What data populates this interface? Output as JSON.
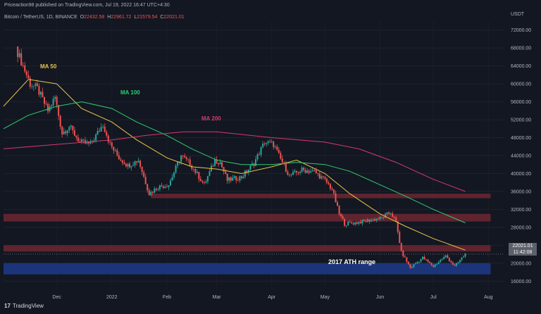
{
  "header": {
    "published": "Priceaction98 published on TradingView.com, Jul 19, 2022 16:47 UTC+4:30",
    "symbol": "Bitcoin / TetherUS, 1D, BINANCE",
    "o": "O",
    "o_val": "22432.58",
    "h": "H",
    "h_val": "22961.72",
    "l": "L",
    "l_val": "21579.54",
    "c": "C",
    "c_val": "22021.01",
    "unit": "USDT"
  },
  "footer": {
    "logo": "17",
    "brand": "TradingView"
  },
  "badge": {
    "price": "22021.01",
    "time": "11:42:08"
  },
  "annotations": {
    "ma50": "MA 50",
    "ma100": "MA 100",
    "ma200": "MA 200",
    "ath_range": "2017 ATH range"
  },
  "colors": {
    "background": "#131722",
    "up": "#26a69a",
    "down": "#ef5350",
    "ma50": "#e8c547",
    "ma100": "#2ecc71",
    "ma200": "#d63a6c",
    "resistance_zone": "#7a2a33",
    "ath_zone": "#1e3a8a"
  },
  "chart_data": {
    "type": "candlestick",
    "x_labels": [
      "Dec",
      "2022",
      "Feb",
      "Mar",
      "Apr",
      "May",
      "Jun",
      "Jul",
      "Aug"
    ],
    "y_ticks": [
      16000,
      20000,
      24000,
      28000,
      32000,
      36000,
      40000,
      44000,
      48000,
      52000,
      56000,
      60000,
      64000,
      68000,
      72000
    ],
    "ylim": [
      14000,
      74000
    ],
    "price_path": [
      [
        "2021-11-09",
        67000
      ],
      [
        "2021-11-12",
        64000
      ],
      [
        "2021-11-16",
        60000
      ],
      [
        "2021-11-20",
        59000
      ],
      [
        "2021-11-26",
        54000
      ],
      [
        "2021-11-30",
        57000
      ],
      [
        "2021-12-04",
        49000
      ],
      [
        "2021-12-08",
        50500
      ],
      [
        "2021-12-14",
        47000
      ],
      [
        "2021-12-20",
        46500
      ],
      [
        "2021-12-27",
        51000
      ],
      [
        "2021-12-31",
        46500
      ],
      [
        "2022-01-05",
        43500
      ],
      [
        "2022-01-10",
        41800
      ],
      [
        "2022-01-16",
        43000
      ],
      [
        "2022-01-22",
        35500
      ],
      [
        "2022-01-27",
        37000
      ],
      [
        "2022-02-02",
        37500
      ],
      [
        "2022-02-09",
        44000
      ],
      [
        "2022-02-14",
        42200
      ],
      [
        "2022-02-22",
        37500
      ],
      [
        "2022-02-28",
        43000
      ],
      [
        "2022-03-03",
        42500
      ],
      [
        "2022-03-07",
        38500
      ],
      [
        "2022-03-15",
        39200
      ],
      [
        "2022-03-22",
        42300
      ],
      [
        "2022-03-28",
        47000
      ],
      [
        "2022-04-02",
        46500
      ],
      [
        "2022-04-06",
        43200
      ],
      [
        "2022-04-11",
        39500
      ],
      [
        "2022-04-18",
        40800
      ],
      [
        "2022-04-25",
        40400
      ],
      [
        "2022-05-01",
        38500
      ],
      [
        "2022-05-05",
        36500
      ],
      [
        "2022-05-09",
        31000
      ],
      [
        "2022-05-12",
        28800
      ],
      [
        "2022-05-18",
        29000
      ],
      [
        "2022-05-25",
        29500
      ],
      [
        "2022-06-01",
        30000
      ],
      [
        "2022-06-07",
        31300
      ],
      [
        "2022-06-10",
        29100
      ],
      [
        "2022-06-13",
        22500
      ],
      [
        "2022-06-18",
        19000
      ],
      [
        "2022-06-25",
        21200
      ],
      [
        "2022-07-01",
        19300
      ],
      [
        "2022-07-08",
        21600
      ],
      [
        "2022-07-13",
        19300
      ],
      [
        "2022-07-19",
        22021
      ]
    ],
    "ohlc_last": {
      "open": 22432.58,
      "high": 22961.72,
      "low": 21579.54,
      "close": 22021.01
    },
    "ma50": [
      [
        "2021-11-01",
        55000
      ],
      [
        "2021-11-15",
        61000
      ],
      [
        "2021-12-01",
        60000
      ],
      [
        "2021-12-15",
        54500
      ],
      [
        "2022-01-01",
        51500
      ],
      [
        "2022-01-15",
        47500
      ],
      [
        "2022-02-01",
        43500
      ],
      [
        "2022-02-15",
        41500
      ],
      [
        "2022-03-01",
        41000
      ],
      [
        "2022-03-15",
        40000
      ],
      [
        "2022-04-01",
        41500
      ],
      [
        "2022-04-15",
        43000
      ],
      [
        "2022-05-01",
        40000
      ],
      [
        "2022-05-15",
        35500
      ],
      [
        "2022-06-01",
        31000
      ],
      [
        "2022-06-15",
        28300
      ],
      [
        "2022-07-01",
        25500
      ],
      [
        "2022-07-19",
        22900
      ]
    ],
    "ma100": [
      [
        "2021-11-01",
        50000
      ],
      [
        "2021-11-15",
        53000
      ],
      [
        "2021-12-01",
        55000
      ],
      [
        "2021-12-15",
        56000
      ],
      [
        "2022-01-01",
        54500
      ],
      [
        "2022-01-15",
        51500
      ],
      [
        "2022-02-01",
        48500
      ],
      [
        "2022-02-15",
        45500
      ],
      [
        "2022-03-01",
        43000
      ],
      [
        "2022-03-15",
        42000
      ],
      [
        "2022-04-01",
        42000
      ],
      [
        "2022-04-15",
        42500
      ],
      [
        "2022-05-01",
        42000
      ],
      [
        "2022-05-15",
        40500
      ],
      [
        "2022-06-01",
        37500
      ],
      [
        "2022-06-15",
        35000
      ],
      [
        "2022-07-01",
        32000
      ],
      [
        "2022-07-19",
        29000
      ]
    ],
    "ma200": [
      [
        "2021-11-01",
        45500
      ],
      [
        "2021-12-01",
        46500
      ],
      [
        "2022-01-01",
        47500
      ],
      [
        "2022-01-20",
        48500
      ],
      [
        "2022-02-10",
        49300
      ],
      [
        "2022-03-01",
        49300
      ],
      [
        "2022-04-01",
        48000
      ],
      [
        "2022-05-01",
        47000
      ],
      [
        "2022-05-20",
        45500
      ],
      [
        "2022-06-10",
        42500
      ],
      [
        "2022-07-01",
        38700
      ],
      [
        "2022-07-19",
        36000
      ]
    ],
    "zones": [
      {
        "label": "",
        "from": 34500,
        "to": 35500,
        "start": "2022-01-23",
        "end": "2022-07-19"
      },
      {
        "label": "",
        "from": 29300,
        "to": 31000,
        "start": "2021-11-01",
        "end": "2022-07-19"
      },
      {
        "label": "",
        "from": 22600,
        "to": 24000,
        "start": "2021-11-01",
        "end": "2022-07-19"
      },
      {
        "label": "2017 ATH range",
        "from": 17500,
        "to": 20000,
        "start": "2021-11-01",
        "end": "2022-07-19"
      }
    ]
  }
}
